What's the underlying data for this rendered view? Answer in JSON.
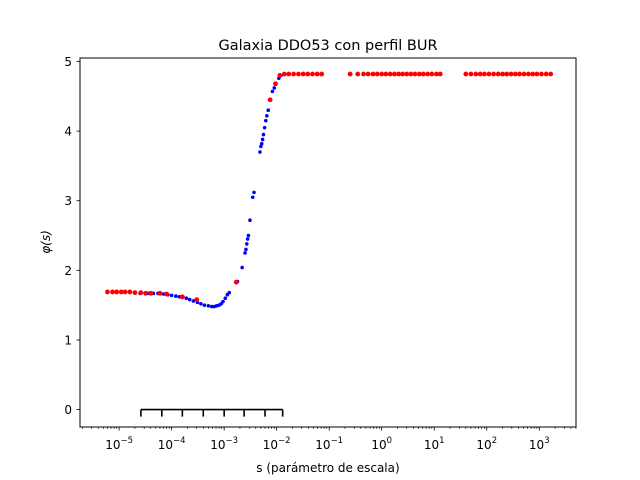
{
  "chart_data": {
    "type": "scatter",
    "title": "Galaxia DDO53 con perfil BUR",
    "xlabel": "s (parámetro de escala)",
    "ylabel": "φ(s)",
    "xscale": "log",
    "xlim": [
      1.8e-06,
      5000
    ],
    "ylim": [
      -0.25,
      5.05
    ],
    "grid": false,
    "x_ticks": [
      {
        "value": 1e-05,
        "base": "10",
        "exp": "−5"
      },
      {
        "value": 0.0001,
        "base": "10",
        "exp": "−4"
      },
      {
        "value": 0.001,
        "base": "10",
        "exp": "−3"
      },
      {
        "value": 0.01,
        "base": "10",
        "exp": "−2"
      },
      {
        "value": 0.1,
        "base": "10",
        "exp": "−1"
      },
      {
        "value": 1,
        "base": "10",
        "exp": "0"
      },
      {
        "value": 10,
        "base": "10",
        "exp": "1"
      },
      {
        "value": 100,
        "base": "10",
        "exp": "2"
      },
      {
        "value": 1000,
        "base": "10",
        "exp": "3"
      }
    ],
    "y_ticks": [
      {
        "value": 0,
        "label": "0"
      },
      {
        "value": 1,
        "label": "1"
      },
      {
        "value": 2,
        "label": "2"
      },
      {
        "value": 3,
        "label": "3"
      },
      {
        "value": 4,
        "label": "4"
      },
      {
        "value": 5,
        "label": "5"
      }
    ],
    "colors": {
      "red": "#ff0000",
      "blue": "#0000ff",
      "black": "#000000"
    },
    "series": [
      {
        "color": "#0000ff",
        "marker": "small-dot",
        "points": [
          [
            2.5e-05,
            1.67
          ],
          [
            3.5e-05,
            1.67
          ],
          [
            4.5e-05,
            1.67
          ],
          [
            5.5e-05,
            1.67
          ],
          [
            7e-05,
            1.66
          ],
          [
            8.5e-05,
            1.65
          ],
          [
            0.0001,
            1.64
          ],
          [
            0.00012,
            1.63
          ],
          [
            0.00014,
            1.62
          ],
          [
            0.00016,
            1.61
          ],
          [
            0.00019,
            1.6
          ],
          [
            0.00022,
            1.58
          ],
          [
            0.00026,
            1.56
          ],
          [
            0.00031,
            1.54
          ],
          [
            0.00036,
            1.52
          ],
          [
            0.00042,
            1.5
          ],
          [
            0.0005,
            1.49
          ],
          [
            0.00058,
            1.48
          ],
          [
            0.00065,
            1.48
          ],
          [
            0.00072,
            1.49
          ],
          [
            0.0008,
            1.5
          ],
          [
            0.00088,
            1.52
          ],
          [
            0.00095,
            1.55
          ],
          [
            0.00105,
            1.6
          ],
          [
            0.00115,
            1.65
          ],
          [
            0.00125,
            1.68
          ],
          [
            0.0018,
            1.84
          ],
          [
            0.0022,
            2.04
          ],
          [
            0.0025,
            2.25
          ],
          [
            0.0026,
            2.3
          ],
          [
            0.0027,
            2.38
          ],
          [
            0.0028,
            2.45
          ],
          [
            0.0029,
            2.5
          ],
          [
            0.0031,
            2.72
          ],
          [
            0.0035,
            3.05
          ],
          [
            0.0037,
            3.12
          ],
          [
            0.0048,
            3.7
          ],
          [
            0.005,
            3.78
          ],
          [
            0.0052,
            3.82
          ],
          [
            0.0054,
            3.88
          ],
          [
            0.0056,
            3.95
          ],
          [
            0.0059,
            4.05
          ],
          [
            0.0062,
            4.15
          ],
          [
            0.0065,
            4.22
          ],
          [
            0.0069,
            4.3
          ],
          [
            0.0076,
            4.45
          ],
          [
            0.0083,
            4.57
          ],
          [
            0.009,
            4.62
          ],
          [
            0.011,
            4.76
          ],
          [
            0.012,
            4.8
          ]
        ]
      },
      {
        "color": "#ff0000",
        "marker": "dot",
        "points": [
          [
            6e-06,
            1.69
          ],
          [
            7.5e-06,
            1.69
          ],
          [
            9e-06,
            1.69
          ],
          [
            1.1e-05,
            1.69
          ],
          [
            1.3e-05,
            1.69
          ],
          [
            1.6e-05,
            1.69
          ],
          [
            2e-05,
            1.68
          ],
          [
            2.6e-05,
            1.68
          ],
          [
            3.2e-05,
            1.67
          ],
          [
            4e-05,
            1.67
          ],
          [
            6e-05,
            1.67
          ],
          [
            8e-05,
            1.66
          ],
          [
            0.00016,
            1.62
          ],
          [
            0.0003,
            1.58
          ],
          [
            0.0017,
            1.83
          ],
          [
            0.0075,
            4.45
          ],
          [
            0.0095,
            4.68
          ],
          [
            0.0115,
            4.8
          ],
          [
            0.014,
            4.82
          ],
          [
            0.017,
            4.82
          ],
          [
            0.021,
            4.82
          ],
          [
            0.026,
            4.82
          ],
          [
            0.032,
            4.82
          ],
          [
            0.039,
            4.82
          ],
          [
            0.048,
            4.82
          ],
          [
            0.059,
            4.82
          ],
          [
            0.072,
            4.82
          ],
          [
            0.25,
            4.82
          ],
          [
            0.35,
            4.82
          ],
          [
            0.45,
            4.82
          ],
          [
            0.55,
            4.82
          ],
          [
            0.68,
            4.82
          ],
          [
            0.82,
            4.82
          ],
          [
            1.0,
            4.82
          ],
          [
            1.2,
            4.82
          ],
          [
            1.45,
            4.82
          ],
          [
            1.75,
            4.82
          ],
          [
            2.1,
            4.82
          ],
          [
            2.5,
            4.82
          ],
          [
            3.0,
            4.82
          ],
          [
            3.6,
            4.82
          ],
          [
            4.3,
            4.82
          ],
          [
            5.2,
            4.82
          ],
          [
            6.2,
            4.82
          ],
          [
            7.5,
            4.82
          ],
          [
            9.0,
            4.82
          ],
          [
            11,
            4.82
          ],
          [
            13,
            4.82
          ],
          [
            40,
            4.82
          ],
          [
            50,
            4.82
          ],
          [
            62,
            4.82
          ],
          [
            75,
            4.82
          ],
          [
            90,
            4.82
          ],
          [
            110,
            4.82
          ],
          [
            135,
            4.82
          ],
          [
            165,
            4.82
          ],
          [
            200,
            4.82
          ],
          [
            240,
            4.82
          ],
          [
            290,
            4.82
          ],
          [
            350,
            4.82
          ],
          [
            420,
            4.82
          ],
          [
            510,
            4.82
          ],
          [
            620,
            4.82
          ],
          [
            750,
            4.82
          ],
          [
            900,
            4.82
          ],
          [
            1100,
            4.82
          ],
          [
            1350,
            4.82
          ],
          [
            1650,
            4.82
          ]
        ]
      }
    ],
    "bracket": {
      "color": "#000000",
      "y": 0,
      "x_start": 2.6e-05,
      "x_end": 0.013,
      "tick_x": [
        2.6e-05,
        6.5e-05,
        0.00016,
        0.0004,
        0.001,
        0.0024,
        0.006,
        0.013
      ]
    }
  }
}
